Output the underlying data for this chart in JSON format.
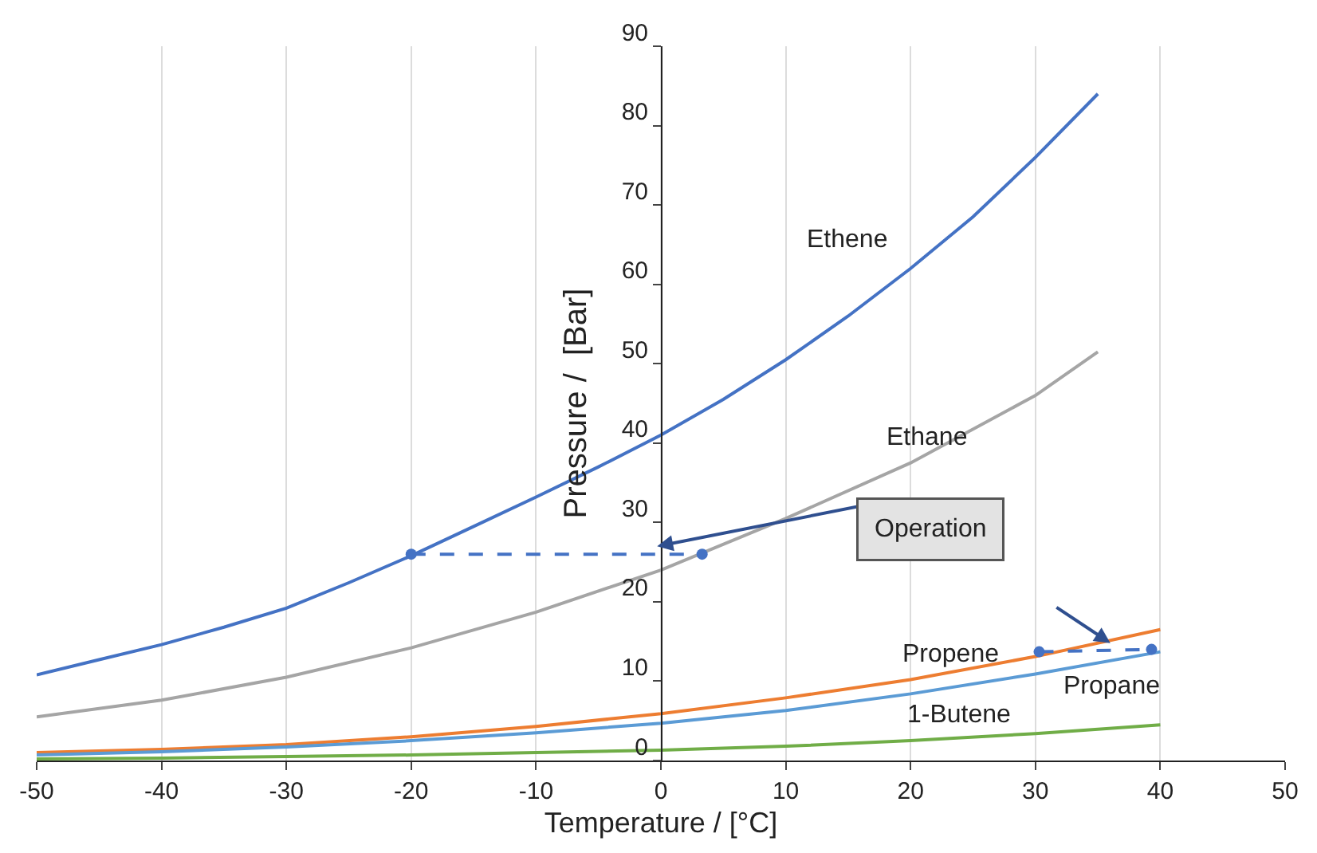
{
  "chart_data": {
    "type": "line",
    "xlabel": "Temperature / [°C]",
    "ylabel": "Pressure /  [Bar]",
    "xlim": [
      -50,
      50
    ],
    "xticks": [
      -50,
      -40,
      -30,
      -20,
      -10,
      0,
      10,
      20,
      30,
      40,
      50
    ],
    "ylim": [
      0,
      90
    ],
    "yticks": [
      0,
      10,
      20,
      30,
      40,
      50,
      60,
      70,
      80,
      90
    ],
    "grid": "x",
    "legend": false,
    "line_style": "solid",
    "marker": "none",
    "series": [
      {
        "name": "Ethene",
        "color": "#4472c4",
        "x": [
          -50,
          -45,
          -40,
          -35,
          -30,
          -25,
          -20,
          -15,
          -10,
          -5,
          0,
          5,
          10,
          15,
          20,
          25,
          30,
          35
        ],
        "values": [
          10.8,
          12.7,
          14.6,
          16.8,
          19.2,
          22.4,
          25.8,
          29.5,
          33.2,
          37,
          41,
          45.5,
          50.5,
          56,
          62,
          68.5,
          76,
          84
        ]
      },
      {
        "name": "Ethane",
        "color": "#a5a5a5",
        "x": [
          -50,
          -40,
          -30,
          -20,
          -10,
          0,
          10,
          20,
          30,
          35
        ],
        "values": [
          5.5,
          7.6,
          10.5,
          14.2,
          18.7,
          24,
          30.5,
          37.5,
          46,
          51.5
        ]
      },
      {
        "name": "Propene",
        "color": "#ed7d31",
        "x": [
          -50,
          -40,
          -30,
          -20,
          -10,
          0,
          10,
          20,
          30,
          40
        ],
        "values": [
          1.0,
          1.4,
          2.0,
          3.0,
          4.3,
          5.9,
          7.9,
          10.2,
          13.1,
          16.5
        ]
      },
      {
        "name": "Propane",
        "color": "#5b9bd5",
        "x": [
          -50,
          -40,
          -30,
          -20,
          -10,
          0,
          10,
          20,
          30,
          40
        ],
        "values": [
          0.7,
          1.1,
          1.7,
          2.5,
          3.5,
          4.7,
          6.3,
          8.4,
          10.9,
          13.7
        ]
      },
      {
        "name": "1-Butene",
        "color": "#70ad47",
        "x": [
          -50,
          -40,
          -30,
          -20,
          -10,
          0,
          10,
          20,
          30,
          40
        ],
        "values": [
          0.2,
          0.3,
          0.5,
          0.7,
          1.0,
          1.3,
          1.8,
          2.5,
          3.4,
          4.5
        ]
      },
      {
        "color": "#4472c4",
        "x": [
          -20,
          3.3
        ],
        "values": [
          26,
          26
        ],
        "line_style": "dashed",
        "marker": "circle"
      },
      {
        "color": "#4472c4",
        "x": [
          30.3,
          39.3
        ],
        "values": [
          13.7,
          14
        ],
        "line_style": "dashed",
        "marker": "circle"
      }
    ],
    "annotations": [
      "Operation"
    ]
  }
}
